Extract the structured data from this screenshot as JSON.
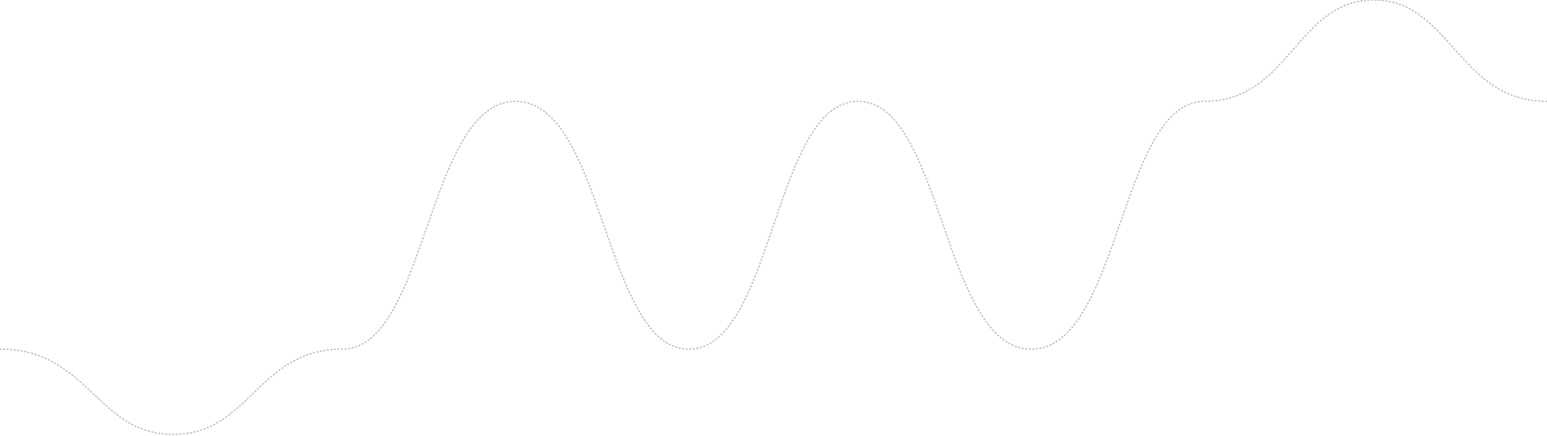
{
  "decoration": {
    "wave_stroke_color": "#b9b9b9",
    "background_color": "#ffffff",
    "style": "dotted"
  }
}
